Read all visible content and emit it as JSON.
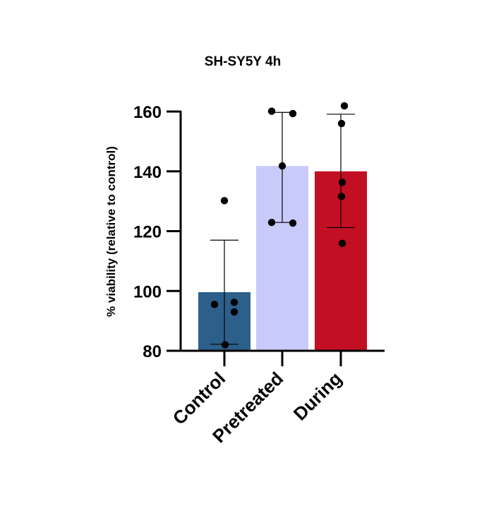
{
  "chart_data": {
    "type": "bar",
    "title": "SH-SY5Y 4h",
    "xlabel": "",
    "ylabel": "% viability (relative to control)",
    "categories": [
      "Control",
      "Pretreated",
      "During"
    ],
    "yticks": [
      80,
      100,
      120,
      140,
      160
    ],
    "ylim": [
      80,
      160
    ],
    "grid": false,
    "legend": "none",
    "colors": [
      "#2d5f8b",
      "#c8cbfa",
      "#c20f23"
    ],
    "means": [
      99.6,
      141.8,
      140.0
    ],
    "error_bars": [
      {
        "lower": 82.2,
        "upper": 117.0
      },
      {
        "lower": 122.9,
        "upper": 159.7
      },
      {
        "lower": 121.2,
        "upper": 159.1
      }
    ],
    "points": [
      [
        130.2,
        95.5,
        96.2,
        93.0,
        82.0
      ],
      [
        160.1,
        159.3,
        141.8,
        122.9,
        122.7
      ],
      [
        161.9,
        156.0,
        136.3,
        131.6,
        115.9
      ]
    ]
  }
}
